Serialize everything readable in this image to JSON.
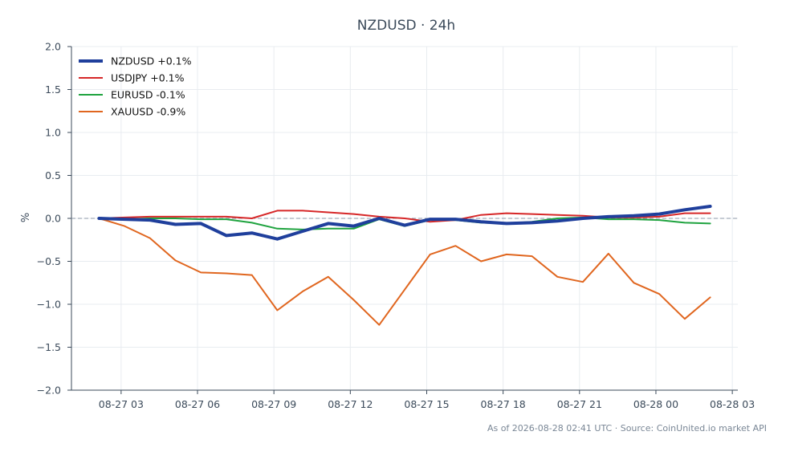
{
  "chart_data": {
    "type": "line",
    "title": "NZDUSD · 24h",
    "xlabel": "",
    "ylabel": "%",
    "ylim": [
      -2.0,
      2.0
    ],
    "yticks": [
      -2.0,
      -1.5,
      -1.0,
      -0.5,
      0.0,
      0.5,
      1.0,
      1.5,
      2.0
    ],
    "ytick_labels": [
      "−2.0",
      "−1.5",
      "−1.0",
      "−0.5",
      "0.0",
      "0.5",
      "1.0",
      "1.5",
      "2.0"
    ],
    "xlim": [
      "08-27 01:03",
      "08-28 03:13"
    ],
    "xtick_labels": [
      "08-27 03",
      "08-27 06",
      "08-27 09",
      "08-27 12",
      "08-27 15",
      "08-27 18",
      "08-27 21",
      "08-28 00",
      "08-28 03"
    ],
    "x": [
      "08-27 02:08",
      "08-27 03:08",
      "08-27 04:08",
      "08-27 05:08",
      "08-27 06:08",
      "08-27 07:08",
      "08-27 08:08",
      "08-27 09:08",
      "08-27 10:08",
      "08-27 11:08",
      "08-27 12:08",
      "08-27 13:08",
      "08-27 14:08",
      "08-27 15:08",
      "08-27 16:08",
      "08-27 17:08",
      "08-27 18:08",
      "08-27 19:08",
      "08-27 20:08",
      "08-27 21:08",
      "08-27 22:08",
      "08-27 23:08",
      "08-28 00:08",
      "08-28 01:08",
      "08-28 02:08"
    ],
    "zero_line": true,
    "grid": true,
    "legend_position": "top-left",
    "series": [
      {
        "name": "NZDUSD +0.1%",
        "color": "#1f3f9c",
        "width": 4,
        "values": [
          0.0,
          -0.01,
          -0.02,
          -0.07,
          -0.06,
          -0.2,
          -0.17,
          -0.24,
          -0.15,
          -0.06,
          -0.09,
          0.0,
          -0.08,
          -0.01,
          -0.01,
          -0.04,
          -0.06,
          -0.05,
          -0.03,
          0.0,
          0.02,
          0.03,
          0.05,
          0.1,
          0.14
        ]
      },
      {
        "name": "USDJPY +0.1%",
        "color": "#d62728",
        "width": 2,
        "values": [
          0.0,
          0.01,
          0.02,
          0.02,
          0.02,
          0.02,
          0.0,
          0.09,
          0.09,
          0.07,
          0.05,
          0.02,
          0.0,
          -0.04,
          -0.02,
          0.04,
          0.06,
          0.05,
          0.04,
          0.03,
          0.01,
          0.01,
          0.02,
          0.06,
          0.06
        ]
      },
      {
        "name": "EURUSD -0.1%",
        "color": "#1fa33f",
        "width": 2,
        "values": [
          0.0,
          -0.01,
          0.0,
          0.0,
          -0.01,
          -0.01,
          -0.05,
          -0.12,
          -0.13,
          -0.12,
          -0.12,
          -0.01,
          -0.09,
          -0.02,
          -0.02,
          -0.05,
          -0.06,
          -0.04,
          0.0,
          0.01,
          -0.01,
          -0.01,
          -0.02,
          -0.05,
          -0.06
        ]
      },
      {
        "name": "XAUUSD -0.9%",
        "color": "#e0661f",
        "width": 2,
        "values": [
          0.0,
          -0.09,
          -0.23,
          -0.49,
          -0.63,
          -0.64,
          -0.66,
          -1.07,
          -0.85,
          -0.68,
          -0.95,
          -1.24,
          -0.83,
          -0.42,
          -0.32,
          -0.5,
          -0.42,
          -0.44,
          -0.68,
          -0.74,
          -0.41,
          -0.75,
          -0.88,
          -1.17,
          -0.92
        ]
      }
    ]
  },
  "footer": {
    "source_text": "As of 2026-08-28 02:41 UTC · Source: CoinUnited.io market API"
  },
  "colors": {
    "axis": "#3b4a5a",
    "grid": "#e8ecf0",
    "zero_line": "#8d98a8"
  }
}
